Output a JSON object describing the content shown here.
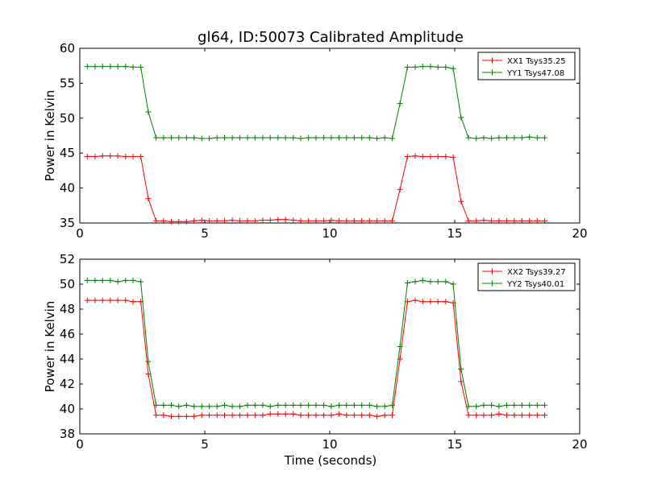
{
  "chart_data": [
    {
      "type": "line",
      "title": "gl64, ID:50073 Calibrated Amplitude",
      "xlabel": "",
      "ylabel": "Power in Kelvin",
      "xlim": [
        0,
        20
      ],
      "ylim": [
        35,
        60
      ],
      "xticks": [
        "0",
        "5",
        "10",
        "15",
        "20"
      ],
      "yticks": [
        "35",
        "40",
        "45",
        "50",
        "55",
        "60"
      ],
      "legend_position": "top-right",
      "grid": false,
      "x": [
        0.3,
        0.61,
        0.91,
        1.22,
        1.52,
        1.83,
        2.13,
        2.44,
        2.74,
        3.05,
        3.35,
        3.66,
        3.96,
        4.27,
        4.57,
        4.88,
        5.18,
        5.49,
        5.79,
        6.1,
        6.4,
        6.71,
        7.01,
        7.32,
        7.62,
        7.93,
        8.23,
        8.54,
        8.84,
        9.15,
        9.45,
        9.76,
        10.06,
        10.37,
        10.67,
        10.98,
        11.28,
        11.59,
        11.89,
        12.2,
        12.5,
        12.81,
        13.11,
        13.42,
        13.72,
        14.03,
        14.33,
        14.64,
        14.94,
        15.25,
        15.55,
        15.86,
        16.16,
        16.47,
        16.77,
        17.08,
        17.38,
        17.69,
        17.99,
        18.3,
        18.6
      ],
      "series": [
        {
          "name": "XX1 Tsys35.25",
          "color": "#ff0000",
          "values": [
            44.5,
            44.5,
            44.6,
            44.6,
            44.6,
            44.5,
            44.5,
            44.5,
            38.5,
            35.3,
            35.3,
            35.2,
            35.2,
            35.2,
            35.3,
            35.4,
            35.3,
            35.3,
            35.3,
            35.4,
            35.3,
            35.3,
            35.3,
            35.4,
            35.4,
            35.5,
            35.5,
            35.4,
            35.3,
            35.3,
            35.3,
            35.3,
            35.4,
            35.3,
            35.3,
            35.3,
            35.3,
            35.3,
            35.3,
            35.3,
            35.3,
            39.8,
            44.5,
            44.6,
            44.5,
            44.5,
            44.5,
            44.5,
            44.4,
            38.1,
            35.3,
            35.3,
            35.4,
            35.3,
            35.3,
            35.3,
            35.3,
            35.3,
            35.3,
            35.3,
            35.3
          ]
        },
        {
          "name": "YY1 Tsys47.08",
          "color": "#008000",
          "values": [
            57.4,
            57.4,
            57.4,
            57.4,
            57.4,
            57.4,
            57.3,
            57.3,
            50.9,
            47.2,
            47.2,
            47.2,
            47.2,
            47.2,
            47.2,
            47.1,
            47.1,
            47.2,
            47.2,
            47.2,
            47.2,
            47.2,
            47.2,
            47.2,
            47.2,
            47.2,
            47.2,
            47.2,
            47.1,
            47.2,
            47.2,
            47.2,
            47.2,
            47.2,
            47.2,
            47.2,
            47.2,
            47.2,
            47.1,
            47.2,
            47.1,
            52.1,
            57.3,
            57.3,
            57.4,
            57.4,
            57.3,
            57.3,
            57.1,
            50.1,
            47.2,
            47.1,
            47.2,
            47.1,
            47.2,
            47.2,
            47.2,
            47.2,
            47.3,
            47.2,
            47.2
          ]
        }
      ]
    },
    {
      "type": "line",
      "title": "",
      "xlabel": "Time (seconds)",
      "ylabel": "Power in Kelvin",
      "xlim": [
        0,
        20
      ],
      "ylim": [
        38,
        52
      ],
      "xticks": [
        "0",
        "5",
        "10",
        "15",
        "20"
      ],
      "yticks": [
        "38",
        "40",
        "42",
        "44",
        "46",
        "48",
        "50",
        "52"
      ],
      "legend_position": "top-right",
      "grid": false,
      "x": [
        0.3,
        0.61,
        0.91,
        1.22,
        1.52,
        1.83,
        2.13,
        2.44,
        2.74,
        3.05,
        3.35,
        3.66,
        3.96,
        4.27,
        4.57,
        4.88,
        5.18,
        5.49,
        5.79,
        6.1,
        6.4,
        6.71,
        7.01,
        7.32,
        7.62,
        7.93,
        8.23,
        8.54,
        8.84,
        9.15,
        9.45,
        9.76,
        10.06,
        10.37,
        10.67,
        10.98,
        11.28,
        11.59,
        11.89,
        12.2,
        12.5,
        12.81,
        13.11,
        13.42,
        13.72,
        14.03,
        14.33,
        14.64,
        14.94,
        15.25,
        15.55,
        15.86,
        16.16,
        16.47,
        16.77,
        17.08,
        17.38,
        17.69,
        17.99,
        18.3,
        18.6
      ],
      "series": [
        {
          "name": "XX2 Tsys39.27",
          "color": "#ff0000",
          "values": [
            48.7,
            48.7,
            48.7,
            48.7,
            48.7,
            48.7,
            48.6,
            48.6,
            42.8,
            39.5,
            39.5,
            39.4,
            39.4,
            39.4,
            39.4,
            39.5,
            39.5,
            39.5,
            39.5,
            39.5,
            39.5,
            39.5,
            39.5,
            39.5,
            39.6,
            39.6,
            39.6,
            39.6,
            39.5,
            39.5,
            39.5,
            39.5,
            39.5,
            39.6,
            39.5,
            39.5,
            39.5,
            39.5,
            39.4,
            39.5,
            39.5,
            44.0,
            48.6,
            48.7,
            48.6,
            48.6,
            48.6,
            48.6,
            48.5,
            42.2,
            39.5,
            39.5,
            39.5,
            39.5,
            39.6,
            39.5,
            39.5,
            39.5,
            39.5,
            39.5,
            39.5
          ]
        },
        {
          "name": "YY2 Tsys40.01",
          "color": "#008000",
          "values": [
            50.3,
            50.3,
            50.3,
            50.3,
            50.2,
            50.3,
            50.3,
            50.2,
            43.8,
            40.3,
            40.3,
            40.3,
            40.2,
            40.3,
            40.2,
            40.2,
            40.2,
            40.2,
            40.3,
            40.2,
            40.2,
            40.3,
            40.3,
            40.3,
            40.2,
            40.3,
            40.3,
            40.3,
            40.3,
            40.3,
            40.3,
            40.3,
            40.2,
            40.3,
            40.3,
            40.3,
            40.3,
            40.3,
            40.2,
            40.2,
            40.3,
            45.0,
            50.1,
            50.2,
            50.3,
            50.2,
            50.2,
            50.2,
            50.0,
            43.2,
            40.2,
            40.2,
            40.3,
            40.3,
            40.2,
            40.3,
            40.3,
            40.3,
            40.3,
            40.3,
            40.3
          ]
        }
      ]
    }
  ]
}
